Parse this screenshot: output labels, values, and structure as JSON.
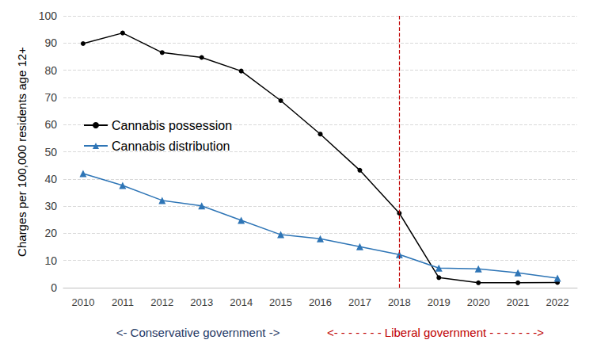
{
  "chart_data": {
    "type": "line",
    "categories": [
      "2010",
      "2011",
      "2012",
      "2013",
      "2014",
      "2015",
      "2016",
      "2017",
      "2018",
      "2019",
      "2020",
      "2021",
      "2022"
    ],
    "y_label": "Charges per 100,000 residents age 12+",
    "series": [
      {
        "name": "Cannabis possession",
        "color": "#000000",
        "marker": "circle",
        "values": [
          89.8,
          93.7,
          86.5,
          84.7,
          79.7,
          68.8,
          56.5,
          43.2,
          27.4,
          3.7,
          1.8,
          1.8,
          1.9
        ]
      },
      {
        "name": "Cannabis distribution",
        "color": "#2e75b6",
        "marker": "triangle",
        "values": [
          42.0,
          37.6,
          32.1,
          30.1,
          24.8,
          19.5,
          18.0,
          15.1,
          12.2,
          7.2,
          6.9,
          5.5,
          3.5
        ]
      }
    ],
    "ylim": [
      0,
      100
    ],
    "yticks": [
      0,
      10,
      20,
      30,
      40,
      50,
      60,
      70,
      80,
      90,
      100
    ],
    "grid": true,
    "legend": "upper left",
    "period_break": {
      "x": "2018",
      "color": "#c00000",
      "line_style": "dashed"
    },
    "annotations": [
      {
        "text": "<- Conservative government ->",
        "color": "#1f3864"
      },
      {
        "text": "<- - - - - - - Liberal government - - - - - - ->",
        "color": "#c00000"
      }
    ]
  }
}
